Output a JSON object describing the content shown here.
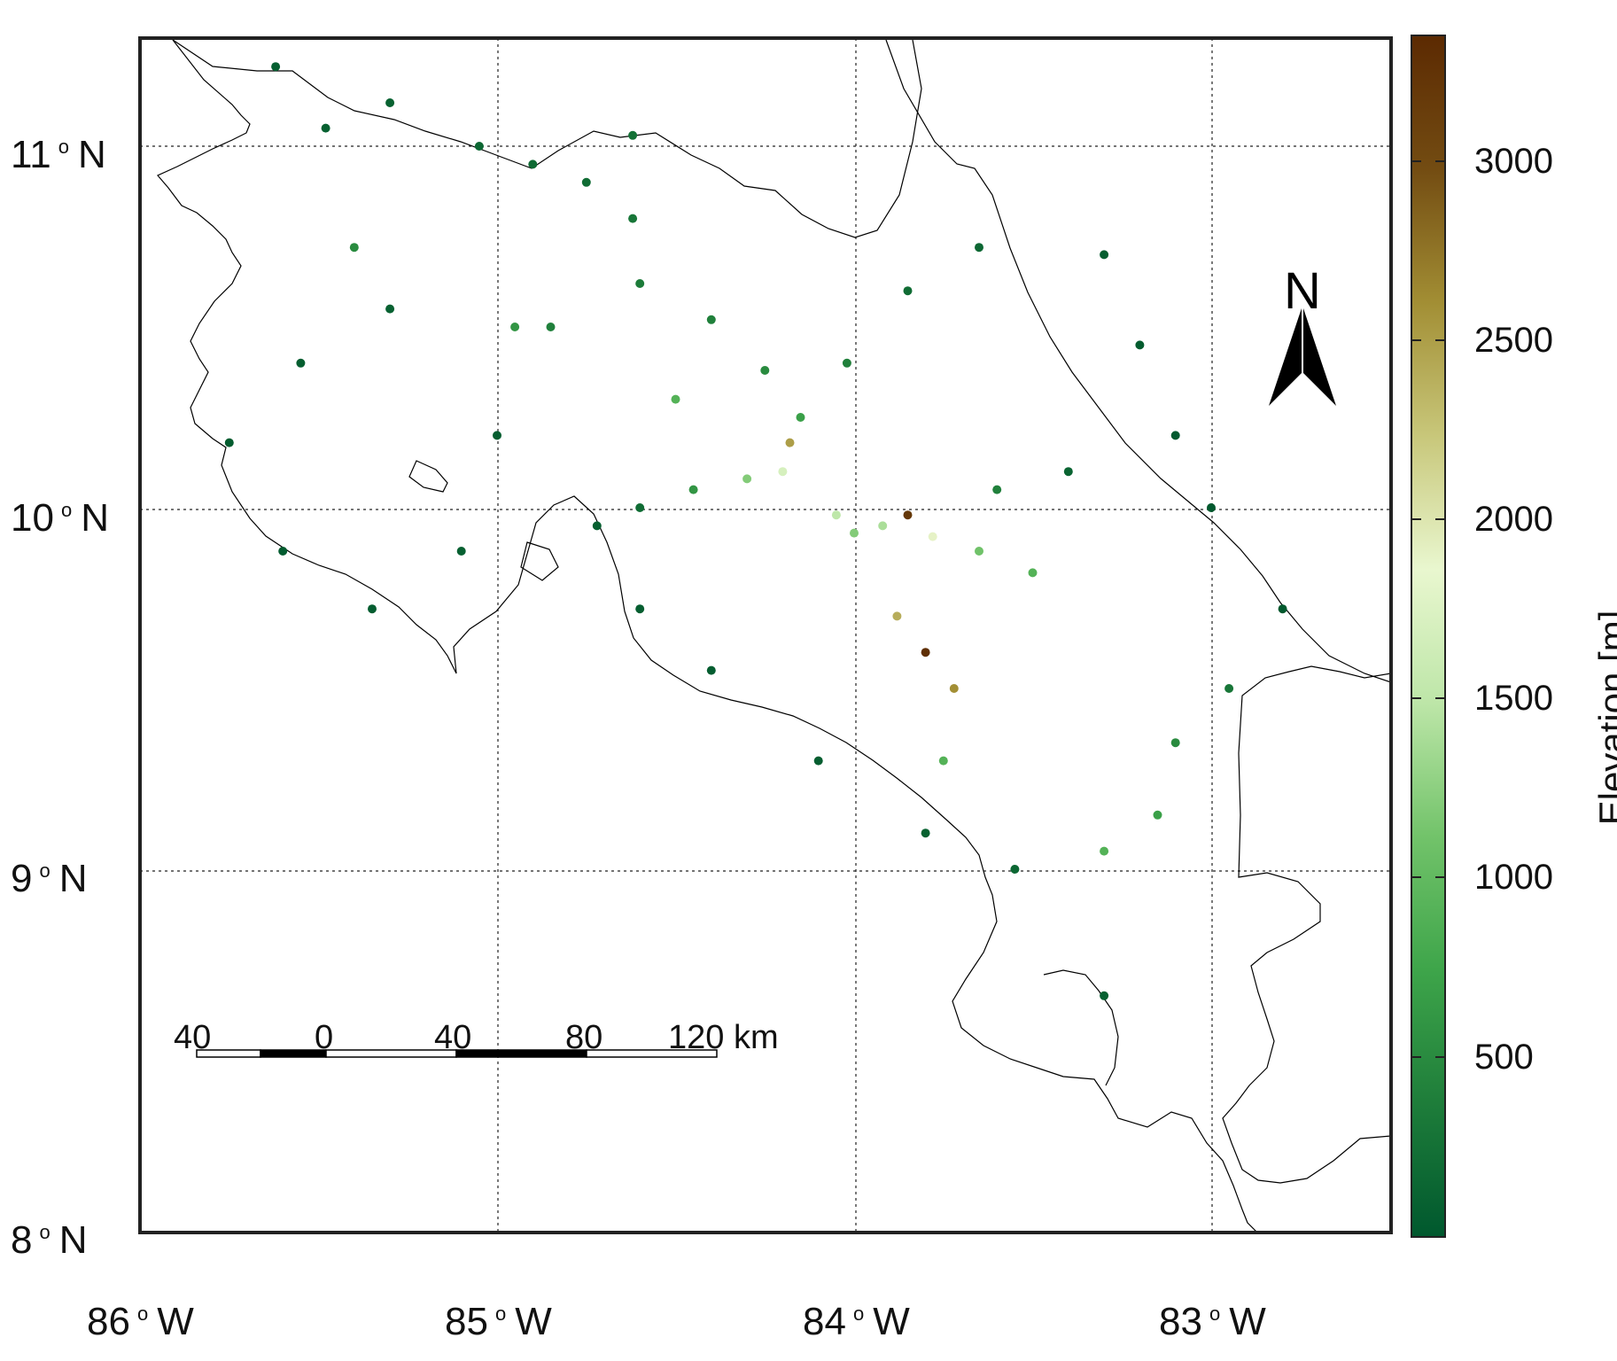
{
  "map": {
    "lat_labels": [
      "11",
      "10",
      "9",
      "8"
    ],
    "lat_suffix": "N",
    "lon_labels": [
      "86",
      "85",
      "84",
      "83"
    ],
    "lon_suffix": "W",
    "north_arrow": {
      "icon": "north-arrow-icon",
      "label": "N"
    },
    "scale_bar": {
      "labels": [
        "40",
        "0",
        "40",
        "80",
        "120 km"
      ]
    },
    "extent": {
      "lon": [
        -86,
        -82.5
      ],
      "lat": [
        8,
        11.3
      ]
    }
  },
  "colorbar": {
    "title": "Elevation [m]",
    "ticks": [
      "500",
      "1000",
      "1500",
      "2000",
      "2500",
      "3000"
    ],
    "range": [
      0,
      3350
    ],
    "colors": [
      "#00582e",
      "#1e7d3a",
      "#3ea54a",
      "#72c36a",
      "#bde6a8",
      "#e9f7cf",
      "#c8c77a",
      "#a28e34",
      "#734c12",
      "#5c2a02"
    ]
  },
  "elevation_points_lonlat": [
    [
      -85.62,
      11.22,
      80
    ],
    [
      -85.48,
      11.05,
      90
    ],
    [
      -85.3,
      11.12,
      100
    ],
    [
      -85.05,
      11.0,
      150
    ],
    [
      -84.9,
      10.95,
      180
    ],
    [
      -84.75,
      10.9,
      200
    ],
    [
      -84.62,
      11.03,
      250
    ],
    [
      -84.62,
      10.8,
      300
    ],
    [
      -84.6,
      10.62,
      350
    ],
    [
      -84.4,
      10.52,
      400
    ],
    [
      -84.25,
      10.38,
      500
    ],
    [
      -84.15,
      10.25,
      700
    ],
    [
      -84.02,
      10.4,
      400
    ],
    [
      -83.85,
      10.6,
      200
    ],
    [
      -83.65,
      10.72,
      150
    ],
    [
      -83.3,
      10.7,
      60
    ],
    [
      -83.2,
      10.45,
      40
    ],
    [
      -83.1,
      10.2,
      20
    ],
    [
      -83.0,
      10.0,
      10
    ],
    [
      -82.8,
      9.72,
      10
    ],
    [
      -82.95,
      9.5,
      300
    ],
    [
      -83.1,
      9.35,
      500
    ],
    [
      -83.15,
      9.15,
      700
    ],
    [
      -83.3,
      9.05,
      900
    ],
    [
      -83.55,
      9.0,
      150
    ],
    [
      -83.8,
      9.1,
      100
    ],
    [
      -84.1,
      9.3,
      60
    ],
    [
      -84.4,
      9.55,
      50
    ],
    [
      -84.6,
      9.72,
      60
    ],
    [
      -84.72,
      9.95,
      70
    ],
    [
      -84.6,
      10.0,
      200
    ],
    [
      -84.45,
      10.05,
      600
    ],
    [
      -84.3,
      10.08,
      1200
    ],
    [
      -84.2,
      10.1,
      1700
    ],
    [
      -84.05,
      9.98,
      1500
    ],
    [
      -84.0,
      9.93,
      1200
    ],
    [
      -83.92,
      9.95,
      1400
    ],
    [
      -83.85,
      9.98,
      3200
    ],
    [
      -83.78,
      9.92,
      1900
    ],
    [
      -83.65,
      9.88,
      1100
    ],
    [
      -83.5,
      9.82,
      900
    ],
    [
      -83.88,
      9.7,
      2400
    ],
    [
      -83.8,
      9.6,
      3300
    ],
    [
      -83.72,
      9.5,
      2600
    ],
    [
      -83.75,
      9.3,
      900
    ],
    [
      -84.18,
      10.18,
      2500
    ],
    [
      -83.6,
      10.05,
      400
    ],
    [
      -83.4,
      10.1,
      120
    ],
    [
      -85.3,
      10.55,
      90
    ],
    [
      -85.55,
      10.4,
      60
    ],
    [
      -85.75,
      10.18,
      40
    ],
    [
      -85.6,
      9.88,
      30
    ],
    [
      -85.35,
      9.72,
      50
    ],
    [
      -85.1,
      9.88,
      80
    ],
    [
      -85.0,
      10.2,
      60
    ],
    [
      -84.85,
      10.5,
      400
    ],
    [
      -84.95,
      10.5,
      600
    ],
    [
      -85.4,
      10.72,
      500
    ],
    [
      -84.5,
      10.3,
      900
    ],
    [
      -83.3,
      8.65,
      90
    ]
  ]
}
